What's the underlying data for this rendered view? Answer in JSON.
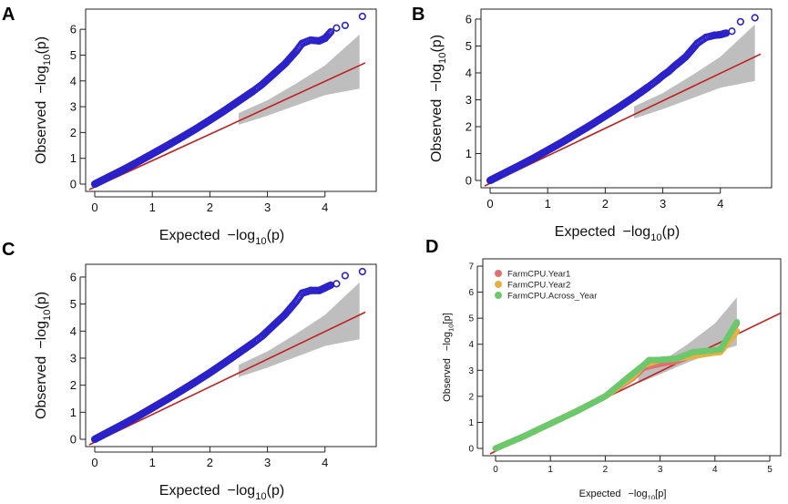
{
  "chart_data": [
    {
      "type": "scatter",
      "panel_label": "A",
      "xlabel": "Expected",
      "ylabel": "Observed",
      "axis_fn": "−log",
      "axis_sub": "10",
      "axis_arg": "(p)",
      "xlim": [
        0,
        4.7
      ],
      "ylim": [
        0,
        6.5
      ],
      "xticks": [
        "0",
        "1",
        "2",
        "3",
        "4"
      ],
      "yticks": [
        "0",
        "1",
        "2",
        "3",
        "4",
        "5",
        "6"
      ],
      "reference_line": {
        "from": [
          0,
          0
        ],
        "to": [
          4.7,
          4.7
        ]
      },
      "confidence_band": {
        "x": [
          2.5,
          3.0,
          3.5,
          4.0,
          4.6
        ],
        "lower": [
          2.3,
          2.65,
          3.05,
          3.45,
          3.7
        ],
        "upper": [
          2.75,
          3.25,
          3.9,
          4.6,
          5.8
        ]
      },
      "series": [
        {
          "name": "Observed p-values",
          "color": "#2b22c9",
          "x": [
            0,
            0.25,
            0.5,
            0.75,
            1.0,
            1.25,
            1.5,
            1.75,
            2.0,
            2.25,
            2.5,
            2.75,
            2.9,
            3.0,
            3.1,
            3.2,
            3.3,
            3.4,
            3.5,
            3.6,
            3.75,
            3.9,
            4.0,
            4.1,
            4.2,
            4.35,
            4.65
          ],
          "y": [
            0,
            0.28,
            0.56,
            0.86,
            1.17,
            1.48,
            1.8,
            2.13,
            2.48,
            2.84,
            3.22,
            3.6,
            3.85,
            4.05,
            4.25,
            4.45,
            4.65,
            4.9,
            5.15,
            5.45,
            5.58,
            5.55,
            5.65,
            5.9,
            6.05,
            6.15,
            6.5
          ]
        }
      ]
    },
    {
      "type": "scatter",
      "panel_label": "B",
      "xlabel": "Expected",
      "ylabel": "Observed",
      "axis_fn": "−log",
      "axis_sub": "10",
      "axis_arg": "(p)",
      "xlim": [
        0,
        4.7
      ],
      "ylim": [
        0,
        6.1
      ],
      "xticks": [
        "0",
        "1",
        "2",
        "3",
        "4"
      ],
      "yticks": [
        "0",
        "1",
        "2",
        "3",
        "4",
        "5",
        "6"
      ],
      "reference_line": {
        "from": [
          0,
          0
        ],
        "to": [
          4.7,
          4.7
        ]
      },
      "confidence_band": {
        "x": [
          2.5,
          3.0,
          3.5,
          4.0,
          4.6
        ],
        "lower": [
          2.3,
          2.65,
          3.05,
          3.45,
          3.7
        ],
        "upper": [
          2.75,
          3.25,
          3.9,
          4.6,
          5.8
        ]
      },
      "series": [
        {
          "name": "Observed p-values",
          "color": "#2b22c9",
          "x": [
            0,
            0.25,
            0.5,
            0.75,
            1.0,
            1.25,
            1.5,
            1.75,
            2.0,
            2.25,
            2.5,
            2.75,
            2.9,
            3.0,
            3.1,
            3.2,
            3.3,
            3.4,
            3.5,
            3.6,
            3.75,
            3.9,
            4.0,
            4.1,
            4.2,
            4.35,
            4.6
          ],
          "y": [
            0,
            0.27,
            0.54,
            0.82,
            1.12,
            1.42,
            1.74,
            2.06,
            2.4,
            2.74,
            3.1,
            3.48,
            3.72,
            3.9,
            4.05,
            4.25,
            4.42,
            4.6,
            4.85,
            5.1,
            5.32,
            5.4,
            5.42,
            5.48,
            5.55,
            5.9,
            6.05
          ]
        }
      ]
    },
    {
      "type": "scatter",
      "panel_label": "C",
      "xlabel": "Expected",
      "ylabel": "Observed",
      "axis_fn": "−log",
      "axis_sub": "10",
      "axis_arg": "(p)",
      "xlim": [
        0,
        4.7
      ],
      "ylim": [
        0,
        6.2
      ],
      "xticks": [
        "0",
        "1",
        "2",
        "3",
        "4"
      ],
      "yticks": [
        "0",
        "1",
        "2",
        "3",
        "4",
        "5",
        "6"
      ],
      "reference_line": {
        "from": [
          0,
          0
        ],
        "to": [
          4.7,
          4.7
        ]
      },
      "confidence_band": {
        "x": [
          2.5,
          3.0,
          3.5,
          4.0,
          4.6
        ],
        "lower": [
          2.3,
          2.65,
          3.05,
          3.45,
          3.7
        ],
        "upper": [
          2.75,
          3.25,
          3.9,
          4.6,
          5.8
        ]
      },
      "series": [
        {
          "name": "Observed p-values",
          "color": "#2b22c9",
          "x": [
            0,
            0.25,
            0.5,
            0.75,
            1.0,
            1.25,
            1.5,
            1.75,
            2.0,
            2.25,
            2.5,
            2.75,
            2.9,
            3.0,
            3.1,
            3.2,
            3.3,
            3.4,
            3.5,
            3.6,
            3.75,
            3.9,
            4.0,
            4.1,
            4.2,
            4.35,
            4.65
          ],
          "y": [
            0,
            0.28,
            0.56,
            0.85,
            1.16,
            1.47,
            1.79,
            2.12,
            2.46,
            2.82,
            3.19,
            3.56,
            3.8,
            4.0,
            4.2,
            4.4,
            4.6,
            4.85,
            5.1,
            5.4,
            5.5,
            5.5,
            5.6,
            5.7,
            5.75,
            6.05,
            6.2
          ]
        }
      ]
    },
    {
      "type": "scatter",
      "panel_label": "D",
      "xlabel": "Expected",
      "ylabel": "Observed",
      "axis_fn": "−log",
      "axis_sub": "10",
      "axis_arg": "[p]",
      "xlim": [
        0,
        5
      ],
      "ylim": [
        0,
        7
      ],
      "xticks": [
        "0",
        "1",
        "2",
        "3",
        "4",
        "5"
      ],
      "yticks": [
        "0",
        "1",
        "2",
        "3",
        "4",
        "5",
        "6",
        "7"
      ],
      "legend_position": "top-left",
      "reference_line": {
        "from": [
          0,
          0
        ],
        "to": [
          5.2,
          5.2
        ]
      },
      "confidence_band": {
        "x": [
          2.6,
          3.0,
          3.5,
          4.0,
          4.4
        ],
        "lower": [
          2.5,
          2.85,
          3.3,
          3.7,
          3.95
        ],
        "upper": [
          2.9,
          3.3,
          4.0,
          4.8,
          5.8
        ]
      },
      "series": [
        {
          "name": "FarmCPU.Year1",
          "color": "#e07070",
          "x": [
            0,
            0.5,
            1.0,
            1.5,
            2.0,
            2.5,
            2.7,
            3.0,
            3.3,
            3.6,
            3.9,
            4.1,
            4.4
          ],
          "y": [
            0,
            0.45,
            0.95,
            1.45,
            2.0,
            2.7,
            3.1,
            3.25,
            3.35,
            3.6,
            3.7,
            3.75,
            4.8
          ]
        },
        {
          "name": "FarmCPU.Year2",
          "color": "#e8b040",
          "x": [
            0,
            0.5,
            1.0,
            1.5,
            2.0,
            2.5,
            2.7,
            3.0,
            3.3,
            3.6,
            3.9,
            4.1,
            4.4
          ],
          "y": [
            0,
            0.45,
            0.95,
            1.45,
            2.0,
            2.75,
            3.2,
            3.4,
            3.45,
            3.55,
            3.65,
            3.7,
            4.5
          ]
        },
        {
          "name": "FarmCPU.Across_Year",
          "color": "#6dc86d",
          "x": [
            0,
            0.5,
            1.0,
            1.5,
            2.0,
            2.4,
            2.7,
            2.8,
            3.0,
            3.3,
            3.6,
            3.9,
            4.1,
            4.4
          ],
          "y": [
            0,
            0.45,
            0.95,
            1.45,
            2.0,
            2.7,
            3.2,
            3.4,
            3.4,
            3.45,
            3.7,
            3.75,
            3.8,
            4.85
          ]
        }
      ]
    }
  ]
}
